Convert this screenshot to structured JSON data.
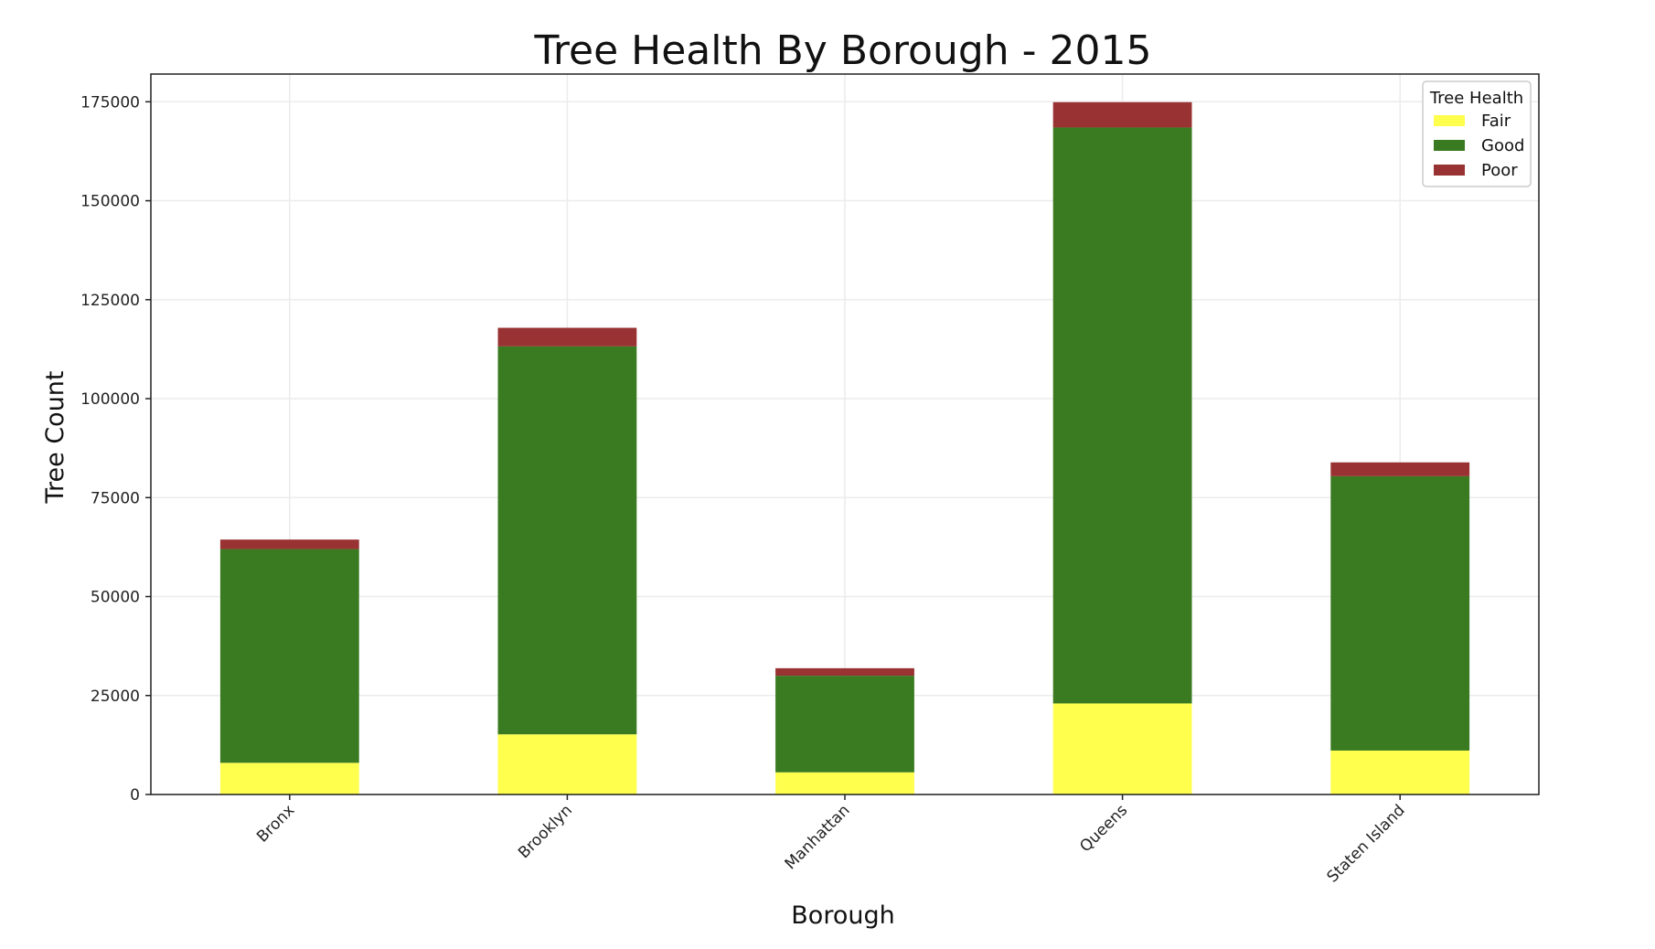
{
  "chart_data": {
    "type": "bar",
    "stacked": true,
    "title": "Tree Health By Borough - 2015",
    "xlabel": "Borough",
    "ylabel": "Tree Count",
    "categories": [
      "Bronx",
      "Brooklyn",
      "Manhattan",
      "Queens",
      "Staten Island"
    ],
    "series": [
      {
        "name": "Fair",
        "color": "#ffff4d",
        "values": [
          8000,
          15200,
          5600,
          23000,
          11100
        ]
      },
      {
        "name": "Good",
        "color": "#3a7b22",
        "values": [
          54000,
          98000,
          24400,
          145500,
          69300
        ]
      },
      {
        "name": "Poor",
        "color": "#993333",
        "values": [
          2400,
          4700,
          1900,
          6400,
          3500
        ]
      }
    ],
    "ylim": [
      0,
      182000
    ],
    "yticks": [
      0,
      25000,
      50000,
      75000,
      100000,
      125000,
      150000,
      175000
    ],
    "ytick_labels": [
      "0",
      "25000",
      "50000",
      "75000",
      "100000",
      "125000",
      "150000",
      "175000"
    ],
    "grid": true,
    "legend": {
      "title": "Tree Health",
      "position": "top-right"
    }
  }
}
